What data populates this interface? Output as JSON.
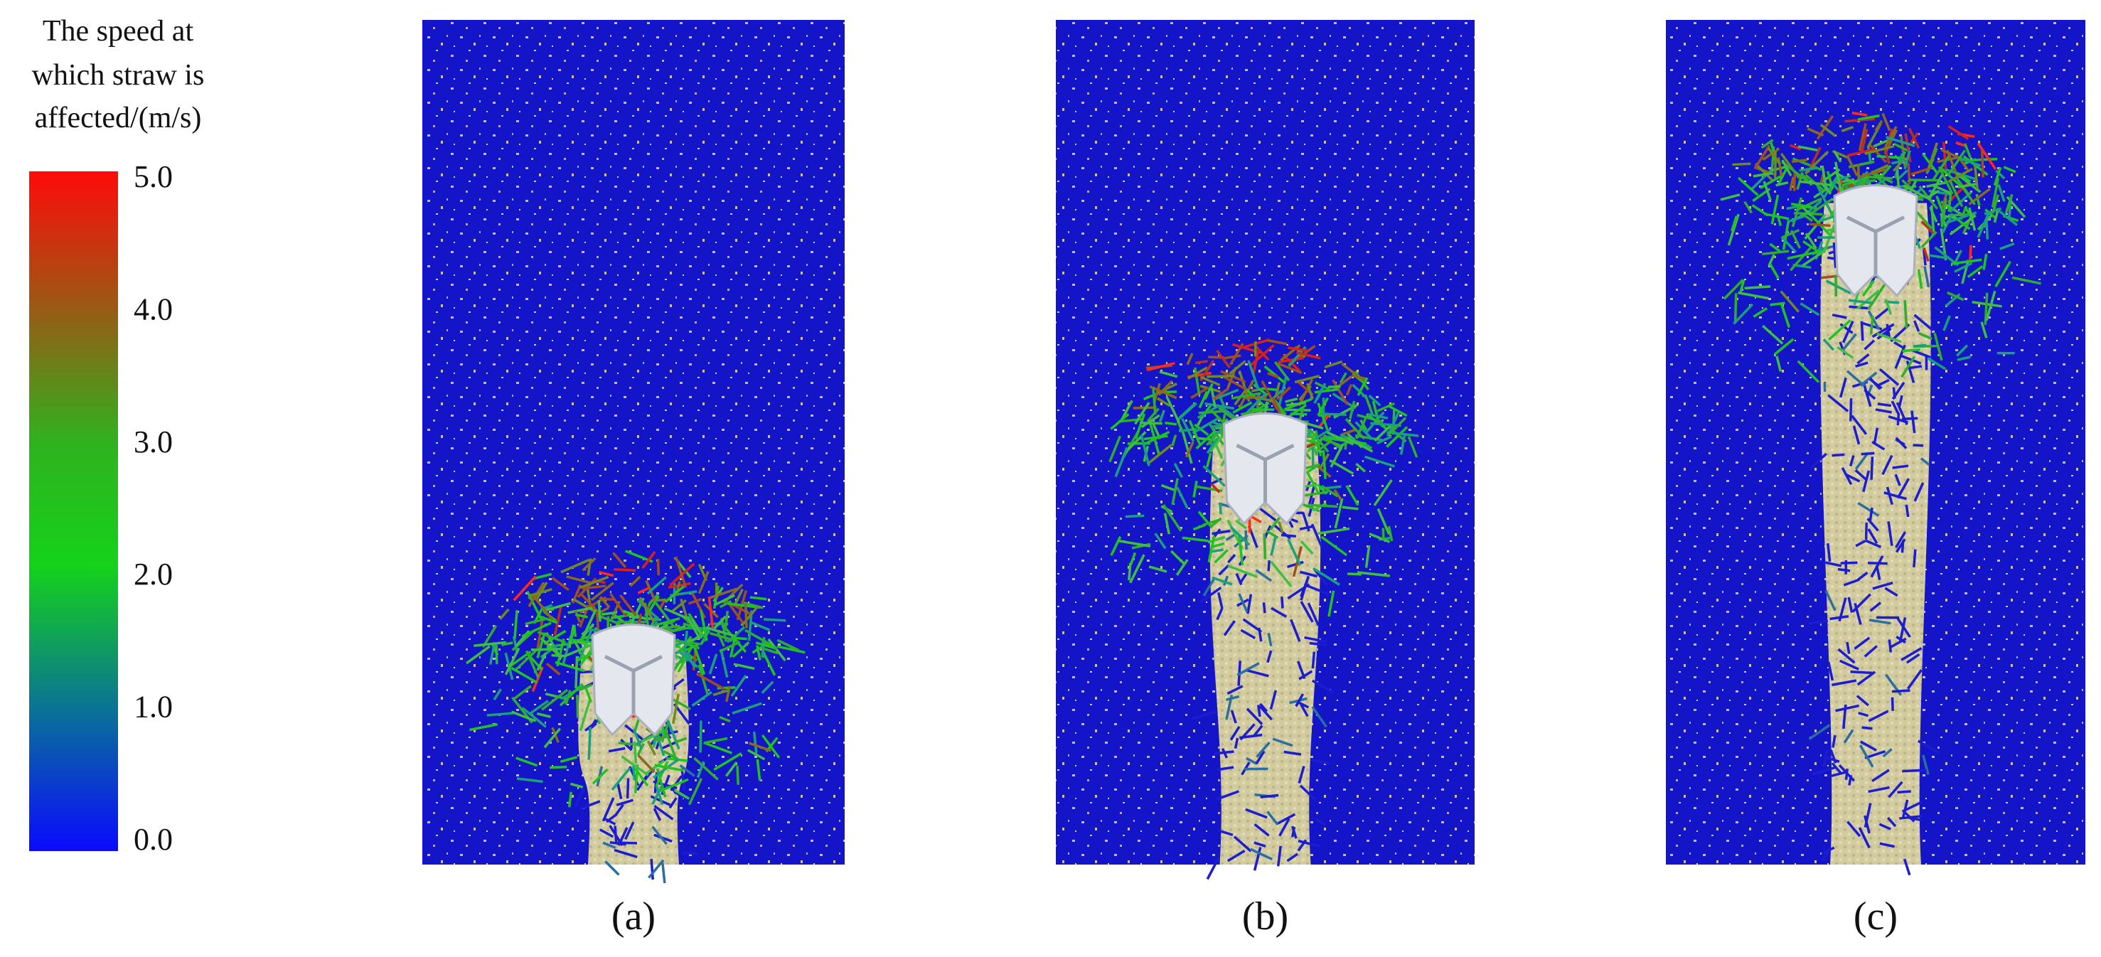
{
  "colorbar": {
    "title_lines": [
      "The speed at",
      "which straw is",
      "affected/(m/s)"
    ],
    "ticks": [
      "5.0",
      "4.0",
      "3.0",
      "2.0",
      "1.0",
      "0.0"
    ]
  },
  "panels": [
    {
      "label": "(a)"
    },
    {
      "label": "(b)"
    },
    {
      "label": "(c)"
    }
  ]
}
